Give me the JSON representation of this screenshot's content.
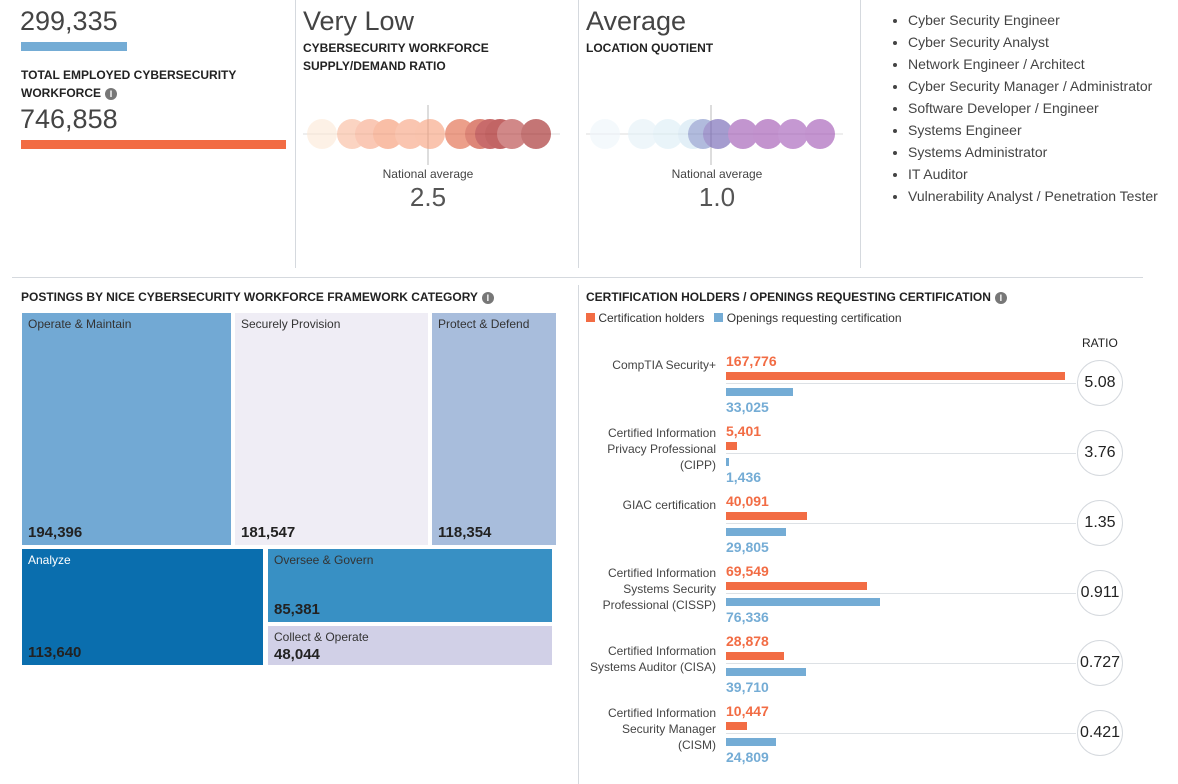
{
  "stats": {
    "openings_value": "299,335",
    "employed_label": "TOTAL EMPLOYED CYBERSECURITY WORKFORCE",
    "employed_value": "746,858"
  },
  "supply_demand": {
    "rating": "Very Low",
    "label": "CYBERSECURITY WORKFORCE SUPPLY/DEMAND RATIO",
    "avg_label": "National average",
    "avg_value": "2.5"
  },
  "location_quotient": {
    "rating": "Average",
    "label": "LOCATION QUOTIENT",
    "avg_label": "National average",
    "avg_value": "1.0"
  },
  "job_titles": [
    "Cyber Security Engineer",
    "Cyber Security Analyst",
    "Network Engineer / Architect",
    "Cyber Security Manager / Administrator",
    "Software Developer / Engineer",
    "Systems Engineer",
    "Systems Administrator",
    "IT Auditor",
    "Vulnerability Analyst / Penetration Tester"
  ],
  "treemap": {
    "title": "POSTINGS BY NICE CYBERSECURITY WORKFORCE FRAMEWORK CATEGORY",
    "tiles": [
      {
        "name": "Operate & Maintain",
        "value": "194,396",
        "color": "#72a9d4"
      },
      {
        "name": "Securely Provision",
        "value": "181,547",
        "color": "#efedf5"
      },
      {
        "name": "Protect & Defend",
        "value": "118,354",
        "color": "#a8bddc"
      },
      {
        "name": "Analyze",
        "value": "113,640",
        "color": "#0a6eae"
      },
      {
        "name": "Oversee & Govern",
        "value": "85,381",
        "color": "#3890c4"
      },
      {
        "name": "Collect & Operate",
        "value": "48,044",
        "color": "#d1d0e7"
      }
    ]
  },
  "certs": {
    "title": "CERTIFICATION HOLDERS / OPENINGS REQUESTING CERTIFICATION",
    "legend_holders": "Certification holders",
    "legend_openings": "Openings requesting certification",
    "ratio_header": "RATIO",
    "holder_color": "#f26c44",
    "opening_color": "#74acd5",
    "rows": [
      {
        "name": "CompTIA Security+",
        "holders": 167776,
        "holders_label": "167,776",
        "openings": 33025,
        "openings_label": "33,025",
        "ratio": "5.08"
      },
      {
        "name": "Certified Information Privacy Professional (CIPP)",
        "holders": 5401,
        "holders_label": "5,401",
        "openings": 1436,
        "openings_label": "1,436",
        "ratio": "3.76"
      },
      {
        "name": "GIAC certification",
        "holders": 40091,
        "holders_label": "40,091",
        "openings": 29805,
        "openings_label": "29,805",
        "ratio": "1.35"
      },
      {
        "name": "Certified Information Systems Security Professional (CISSP)",
        "holders": 69549,
        "holders_label": "69,549",
        "openings": 76336,
        "openings_label": "76,336",
        "ratio": "0.911"
      },
      {
        "name": "Certified Information Systems Auditor (CISA)",
        "holders": 28878,
        "holders_label": "28,878",
        "openings": 39710,
        "openings_label": "39,710",
        "ratio": "0.727"
      },
      {
        "name": "Certified Information Security Manager (CISM)",
        "holders": 10447,
        "holders_label": "10,447",
        "openings": 24809,
        "openings_label": "24,809",
        "ratio": "0.421"
      }
    ]
  }
}
